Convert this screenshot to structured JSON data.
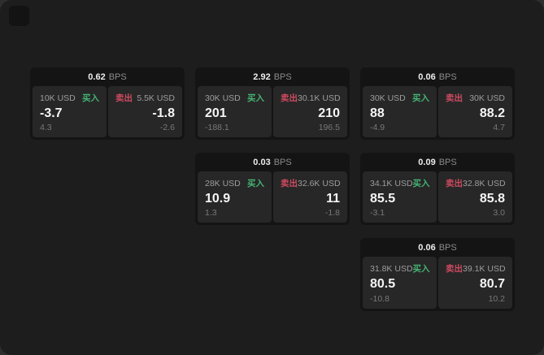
{
  "labels": {
    "bps_unit": "BPS",
    "buy": "买入",
    "sell": "卖出"
  },
  "colors": {
    "buy": "#45b374",
    "sell": "#cd4a60",
    "window_bg": "#1d1d1d",
    "card_bg": "#141414",
    "panel_bg": "#272727"
  },
  "cards": [
    {
      "bps": "0.62",
      "buy": {
        "amount": "10K USD",
        "value": "-3.7",
        "sub": "4.3"
      },
      "sell": {
        "amount": "5.5K USD",
        "value": "-1.8",
        "sub": "-2.6"
      }
    },
    {
      "bps": "2.92",
      "buy": {
        "amount": "30K USD",
        "value": "201",
        "sub": "-188.1"
      },
      "sell": {
        "amount": "30.1K USD",
        "value": "210",
        "sub": "196.5"
      }
    },
    {
      "bps": "0.06",
      "buy": {
        "amount": "30K USD",
        "value": "88",
        "sub": "-4.9"
      },
      "sell": {
        "amount": "30K USD",
        "value": "88.2",
        "sub": "4.7"
      }
    },
    {
      "bps": "0.03",
      "buy": {
        "amount": "28K USD",
        "value": "10.9",
        "sub": "1.3"
      },
      "sell": {
        "amount": "32.6K USD",
        "value": "11",
        "sub": "-1.8"
      }
    },
    {
      "bps": "0.09",
      "buy": {
        "amount": "34.1K USD",
        "value": "85.5",
        "sub": "-3.1"
      },
      "sell": {
        "amount": "32.8K USD",
        "value": "85.8",
        "sub": "3.0"
      }
    },
    {
      "bps": "0.06",
      "buy": {
        "amount": "31.8K USD",
        "value": "80.5",
        "sub": "-10.8"
      },
      "sell": {
        "amount": "39.1K USD",
        "value": "80.7",
        "sub": "10.2"
      }
    }
  ]
}
